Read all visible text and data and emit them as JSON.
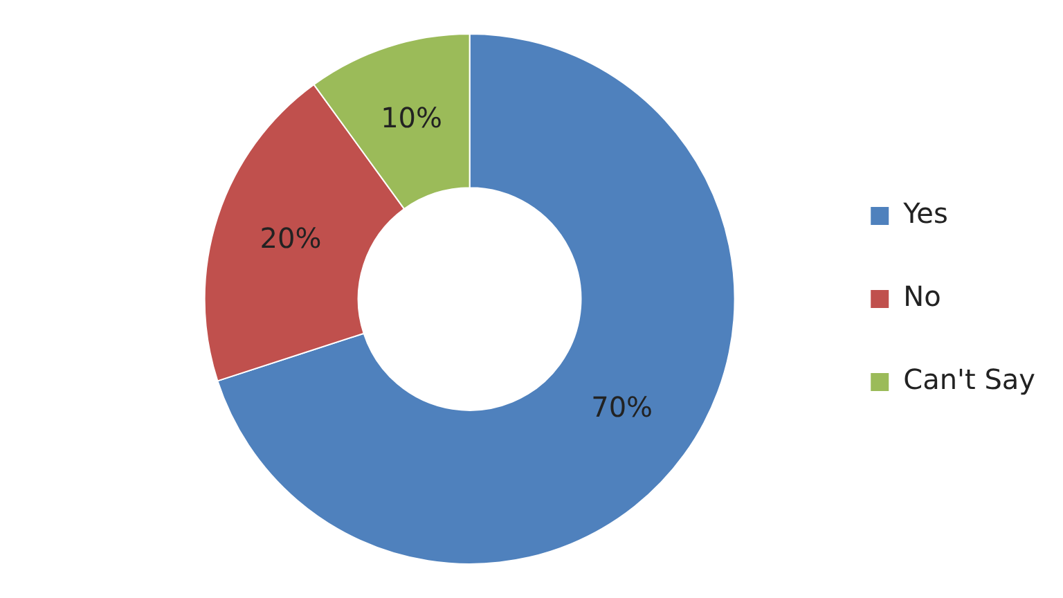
{
  "chart_data": {
    "type": "donut",
    "categories": [
      "Yes",
      "No",
      "Can't Say"
    ],
    "values": [
      70,
      20,
      10
    ],
    "colors": [
      "#4f81bd",
      "#c0504d",
      "#9bbb59"
    ],
    "value_labels": [
      "70%",
      "20%",
      "10%"
    ],
    "legend": "right"
  }
}
